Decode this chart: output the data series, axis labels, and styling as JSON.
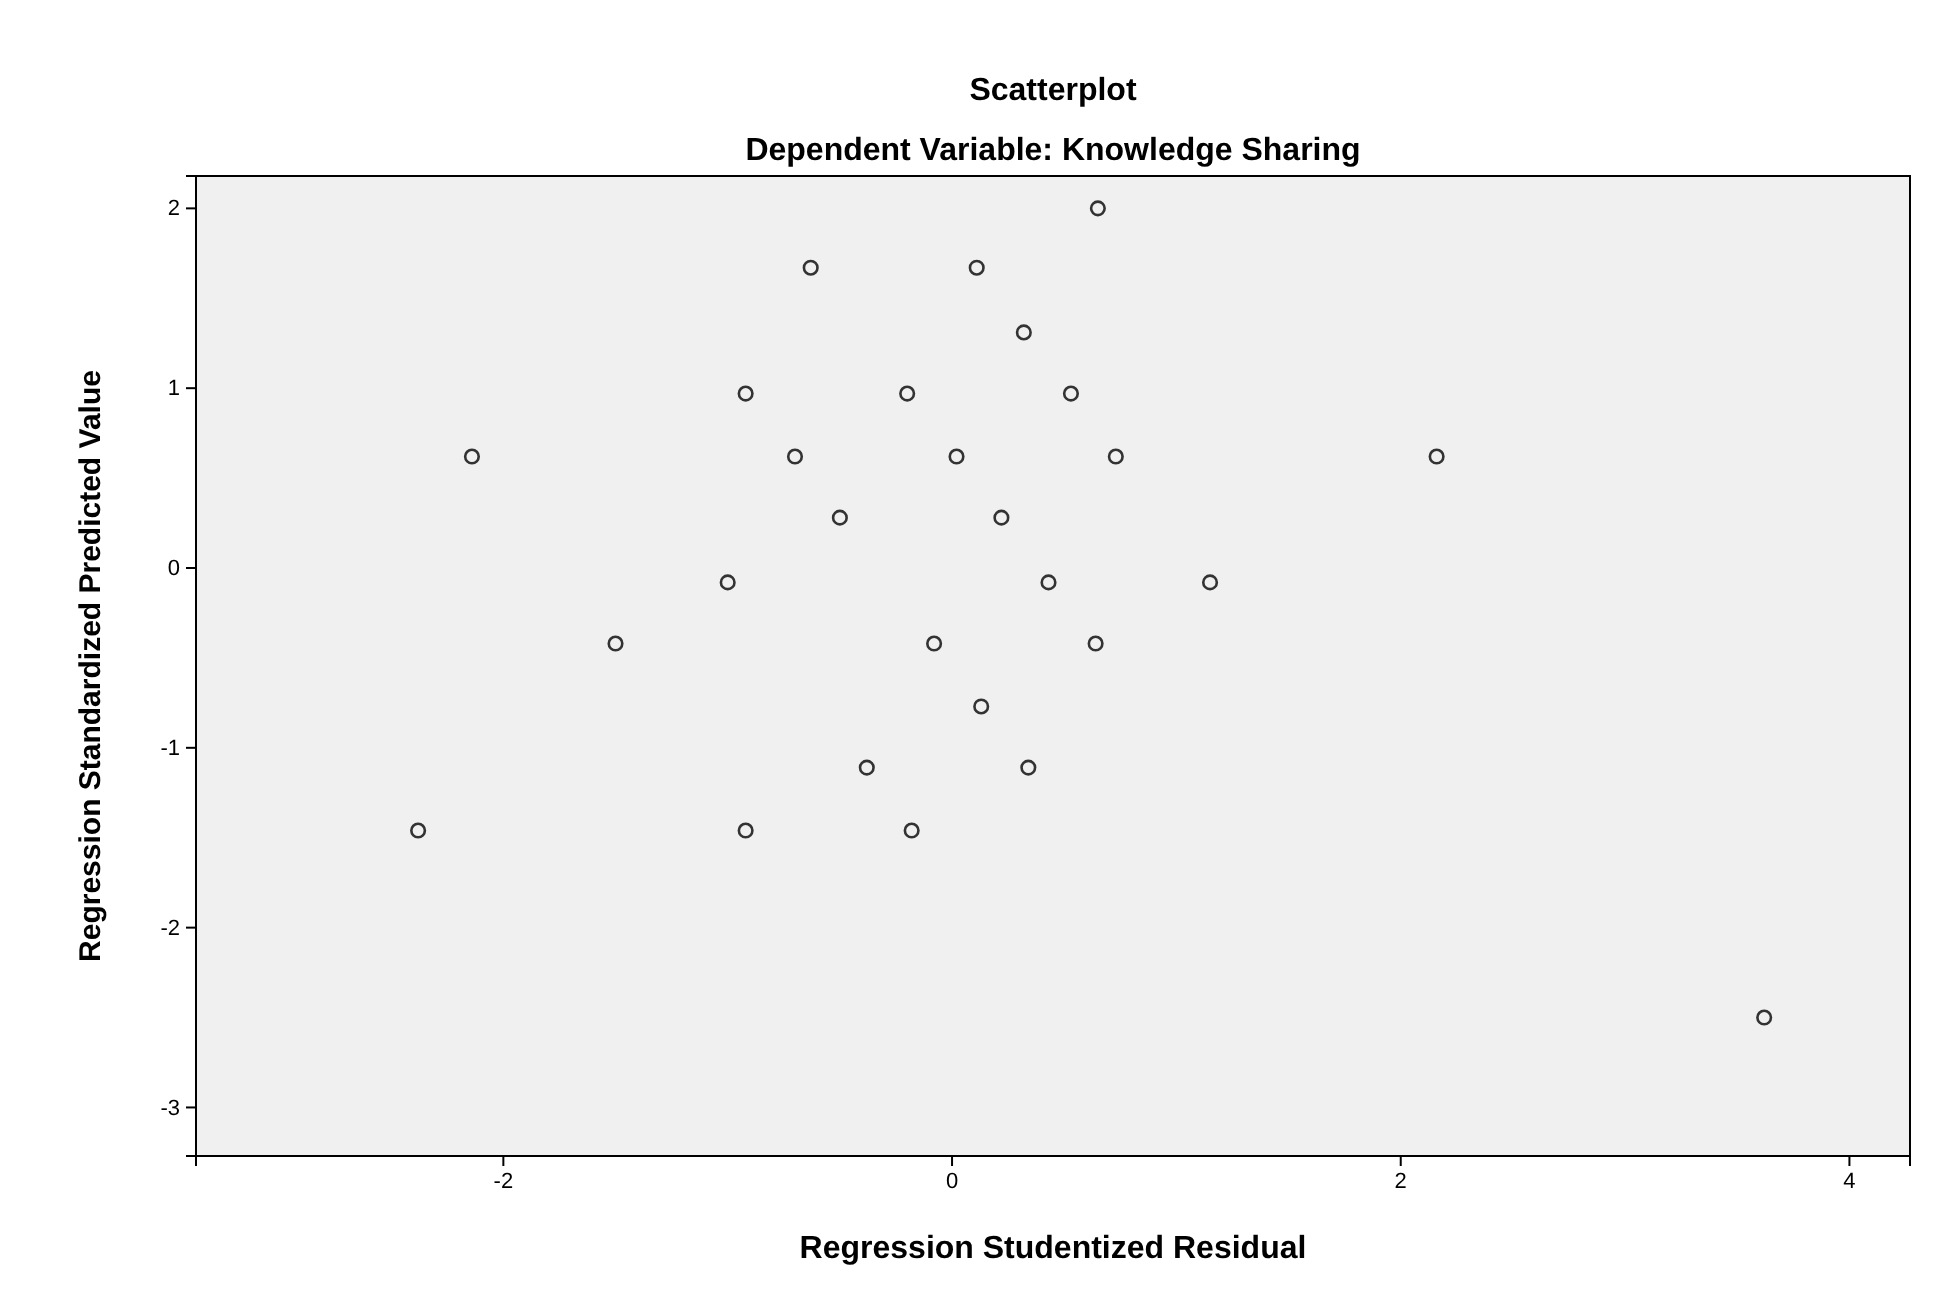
{
  "chart_data": {
    "type": "scatter",
    "title": "Scatterplot",
    "subtitle": "Dependent Variable: Knowledge Sharing",
    "xlabel": "Regression Studentized Residual",
    "ylabel": "Regression Standardized Predicted Value",
    "x": [
      0.65,
      -0.63,
      0.11,
      0.32,
      -0.92,
      -0.2,
      0.53,
      -2.14,
      -0.7,
      0.02,
      0.73,
      2.16,
      -0.5,
      0.22,
      -1.0,
      0.43,
      1.15,
      -1.5,
      -0.08,
      0.64,
      0.13,
      -0.38,
      0.34,
      -2.38,
      -0.92,
      -0.18,
      3.62
    ],
    "values": [
      2.0,
      1.67,
      1.67,
      1.31,
      0.97,
      0.97,
      0.97,
      0.62,
      0.62,
      0.62,
      0.62,
      0.62,
      0.28,
      0.28,
      -0.08,
      -0.08,
      -0.08,
      -0.42,
      -0.42,
      -0.42,
      -0.77,
      -1.11,
      -1.11,
      -1.46,
      -1.46,
      -1.46,
      -2.5
    ],
    "color": "#333333",
    "marker": "circle",
    "grid": false,
    "xlim": [
      -3.37,
      4.27
    ],
    "xticks": [
      -2,
      0,
      2,
      4
    ],
    "ylim": [
      -3.27,
      2.18
    ],
    "yticks": [
      -3,
      -2,
      -1,
      0,
      1,
      2
    ]
  }
}
